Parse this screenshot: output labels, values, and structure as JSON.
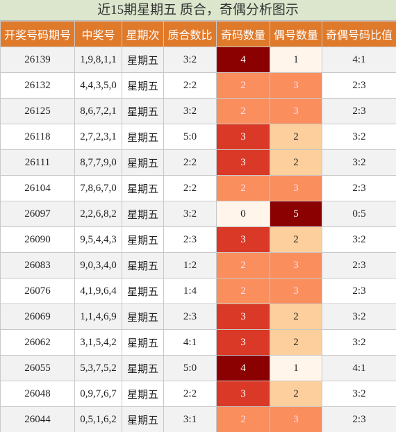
{
  "title": "近15期星期五 质合，奇偶分析图示",
  "table": {
    "headers": [
      "开奖号码期号",
      "中奖号",
      "星期次",
      "质合数比",
      "奇码数量",
      "偶号数量",
      "奇偶号码比值"
    ],
    "rows": [
      [
        "26139",
        "1,9,8,1,1",
        "星期五",
        "3:2",
        "4",
        "1",
        "4:1"
      ],
      [
        "26132",
        "4,4,3,5,0",
        "星期五",
        "2:2",
        "2",
        "3",
        "2:3"
      ],
      [
        "26125",
        "8,6,7,2,1",
        "星期五",
        "3:2",
        "2",
        "3",
        "2:3"
      ],
      [
        "26118",
        "2,7,2,3,1",
        "星期五",
        "5:0",
        "3",
        "2",
        "3:2"
      ],
      [
        "26111",
        "8,7,7,9,0",
        "星期五",
        "2:2",
        "3",
        "2",
        "3:2"
      ],
      [
        "26104",
        "7,8,6,7,0",
        "星期五",
        "2:2",
        "2",
        "3",
        "2:3"
      ],
      [
        "26097",
        "2,2,6,8,2",
        "星期五",
        "3:2",
        "0",
        "5",
        "0:5"
      ],
      [
        "26090",
        "9,5,4,4,3",
        "星期五",
        "2:3",
        "3",
        "2",
        "3:2"
      ],
      [
        "26083",
        "9,0,3,4,0",
        "星期五",
        "1:2",
        "2",
        "3",
        "2:3"
      ],
      [
        "26076",
        "4,1,9,6,4",
        "星期五",
        "1:4",
        "2",
        "3",
        "2:3"
      ],
      [
        "26069",
        "1,1,4,6,9",
        "星期五",
        "2:3",
        "3",
        "2",
        "3:2"
      ],
      [
        "26062",
        "3,1,5,4,2",
        "星期五",
        "4:1",
        "3",
        "2",
        "3:2"
      ],
      [
        "26055",
        "5,3,7,5,2",
        "星期五",
        "5:0",
        "4",
        "1",
        "4:1"
      ],
      [
        "26048",
        "0,9,7,6,7",
        "星期五",
        "2:2",
        "3",
        "2",
        "3:2"
      ],
      [
        "26044",
        "0,5,1,6,2",
        "星期五",
        "3:1",
        "2",
        "3",
        "2:3"
      ]
    ]
  }
}
